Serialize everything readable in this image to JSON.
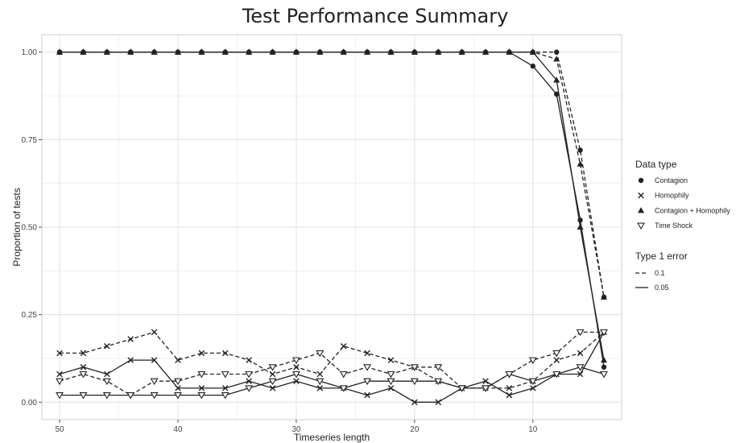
{
  "chart_data": {
    "type": "line",
    "title": "Test Performance Summary",
    "xlabel": "Timeseries length",
    "ylabel": "Proportion of tests",
    "xlim": [
      51.5,
      2.5
    ],
    "ylim": [
      -0.05,
      1.05
    ],
    "x_reversed": true,
    "x_ticks": [
      50,
      40,
      30,
      20,
      10
    ],
    "y_ticks": [
      0.0,
      0.25,
      0.5,
      0.75,
      1.0
    ],
    "x_tick_labels": [
      "50",
      "40",
      "30",
      "20",
      "10"
    ],
    "y_tick_labels": [
      "0.00",
      "0.25",
      "0.50",
      "0.75",
      "1.00"
    ],
    "grid": true,
    "background": "#ffffff",
    "panel_border": "#cccccc",
    "grid_color": "#e6e6e6",
    "line_color": "#222222",
    "x": [
      50,
      48,
      46,
      44,
      42,
      40,
      38,
      36,
      34,
      32,
      30,
      28,
      26,
      24,
      22,
      20,
      18,
      16,
      14,
      12,
      10,
      8,
      6,
      4
    ],
    "series": [
      {
        "data_type": "Contagion",
        "error": "0.1",
        "marker": "circle",
        "values": [
          1,
          1,
          1,
          1,
          1,
          1,
          1,
          1,
          1,
          1,
          1,
          1,
          1,
          1,
          1,
          1,
          1,
          1,
          1,
          1,
          1,
          1,
          0.72,
          0.3
        ]
      },
      {
        "data_type": "Contagion",
        "error": "0.05",
        "marker": "circle",
        "values": [
          1,
          1,
          1,
          1,
          1,
          1,
          1,
          1,
          1,
          1,
          1,
          1,
          1,
          1,
          1,
          1,
          1,
          1,
          1,
          1,
          0.96,
          0.88,
          0.52,
          0.1
        ]
      },
      {
        "data_type": "Homophily",
        "error": "0.1",
        "marker": "cross",
        "values": [
          0.14,
          0.14,
          0.16,
          0.18,
          0.2,
          0.12,
          0.14,
          0.14,
          0.12,
          0.08,
          0.1,
          0.08,
          0.16,
          0.14,
          0.12,
          0.1,
          0.06,
          0.04,
          0.04,
          0.04,
          0.06,
          0.12,
          0.14,
          0.2
        ]
      },
      {
        "data_type": "Homophily",
        "error": "0.05",
        "marker": "cross",
        "values": [
          0.08,
          0.1,
          0.08,
          0.12,
          0.12,
          0.04,
          0.04,
          0.04,
          0.06,
          0.04,
          0.06,
          0.04,
          0.04,
          0.02,
          0.04,
          0.0,
          0.0,
          0.04,
          0.06,
          0.02,
          0.04,
          0.08,
          0.08,
          0.2
        ]
      },
      {
        "data_type": "Contagion + Homophily",
        "error": "0.1",
        "marker": "triangle-up",
        "values": [
          1,
          1,
          1,
          1,
          1,
          1,
          1,
          1,
          1,
          1,
          1,
          1,
          1,
          1,
          1,
          1,
          1,
          1,
          1,
          1,
          1,
          0.98,
          0.68,
          0.3
        ]
      },
      {
        "data_type": "Contagion + Homophily",
        "error": "0.05",
        "marker": "triangle-up",
        "values": [
          1,
          1,
          1,
          1,
          1,
          1,
          1,
          1,
          1,
          1,
          1,
          1,
          1,
          1,
          1,
          1,
          1,
          1,
          1,
          1,
          1,
          0.92,
          0.5,
          0.12
        ]
      },
      {
        "data_type": "Time Shock",
        "error": "0.1",
        "marker": "triangle-down",
        "values": [
          0.06,
          0.08,
          0.06,
          0.02,
          0.06,
          0.06,
          0.08,
          0.08,
          0.08,
          0.1,
          0.12,
          0.14,
          0.08,
          0.1,
          0.08,
          0.1,
          0.1,
          0.04,
          0.04,
          0.08,
          0.12,
          0.14,
          0.2,
          0.2
        ]
      },
      {
        "data_type": "Time Shock",
        "error": "0.05",
        "marker": "triangle-down",
        "values": [
          0.02,
          0.02,
          0.02,
          0.02,
          0.02,
          0.02,
          0.02,
          0.02,
          0.04,
          0.06,
          0.08,
          0.06,
          0.04,
          0.06,
          0.06,
          0.06,
          0.06,
          0.04,
          0.04,
          0.08,
          0.06,
          0.08,
          0.1,
          0.08
        ]
      }
    ],
    "legend": {
      "position": "right",
      "data_type_title": "Data type",
      "data_type_items": [
        {
          "label": "Contagion",
          "marker": "circle"
        },
        {
          "label": "Homophily",
          "marker": "cross"
        },
        {
          "label": "Contagion + Homophily",
          "marker": "triangle-up"
        },
        {
          "label": "Time Shock",
          "marker": "triangle-down"
        }
      ],
      "error_title": "Type 1 error",
      "error_items": [
        {
          "label": "0.1",
          "dash": "dashed"
        },
        {
          "label": "0.05",
          "dash": "solid"
        }
      ]
    }
  }
}
